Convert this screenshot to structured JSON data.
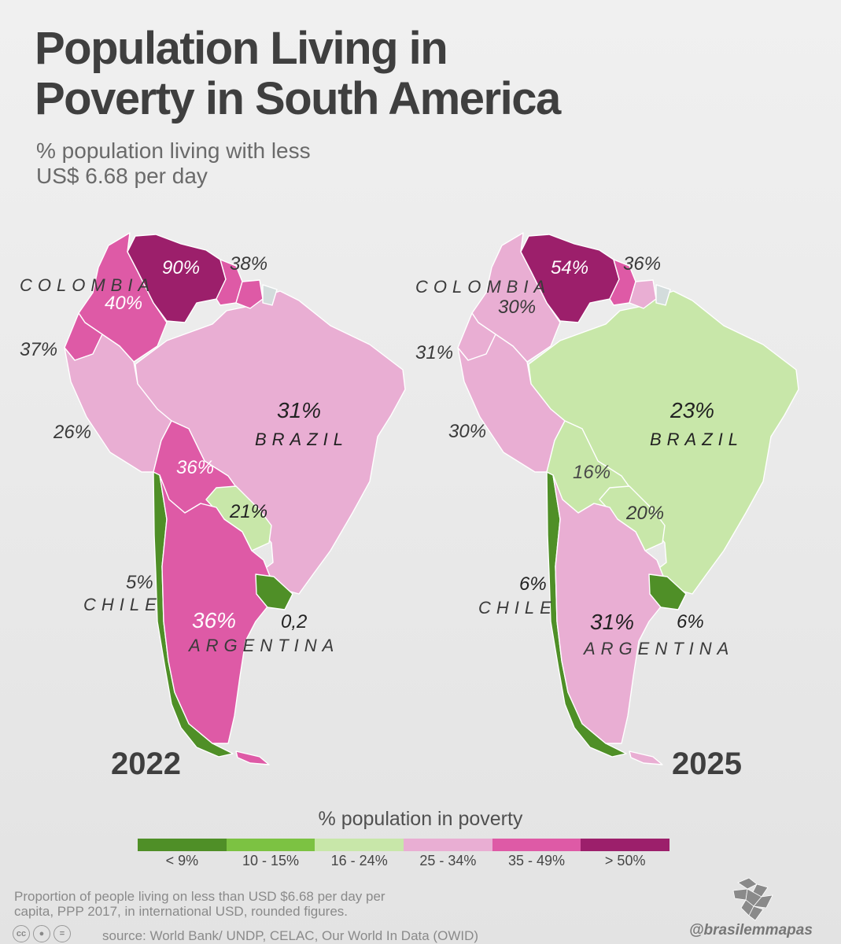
{
  "title_line1": "Population Living in",
  "title_line2": "Poverty in South America",
  "subtitle_line1": "% population living with less",
  "subtitle_line2": "US$ 6.68 per day",
  "maps": {
    "y2022": {
      "year": "2022",
      "labels": {
        "venezuela": "90%",
        "guyanas": "38%",
        "colombia_name": "COLOMBIA",
        "colombia": "40%",
        "ecuador": "37%",
        "peru": "26%",
        "brazil": "31%",
        "brazil_name": "BRAZIL",
        "bolivia": "36%",
        "paraguay": "21%",
        "chile": "5%",
        "chile_name": "CHILE",
        "argentina": "36%",
        "argentina_name": "ARGENTINA",
        "uruguay": "0,2"
      },
      "fills": {
        "venezuela": "#9c1f6b",
        "colombia": "#de5aa6",
        "ecuador": "#de5aa6",
        "peru": "#e9aed3",
        "brazil": "#e9aed3",
        "bolivia": "#de5aa6",
        "paraguay": "#c8e7a9",
        "chile": "#4f8f27",
        "argentina": "#de5aa6",
        "uruguay": "#4f8f27",
        "guyana": "#de5aa6",
        "suriname": "#de5aa6",
        "french_guiana": "#d3dcdc"
      }
    },
    "y2025": {
      "year": "2025",
      "labels": {
        "venezuela": "54%",
        "guyanas": "36%",
        "colombia_name": "COLOMBIA",
        "colombia": "30%",
        "ecuador": "31%",
        "peru": "30%",
        "brazil": "23%",
        "brazil_name": "BRAZIL",
        "bolivia": "16%",
        "paraguay": "20%",
        "chile": "6%",
        "chile_name": "CHILE",
        "argentina": "31%",
        "argentina_name": "ARGENTINA",
        "uruguay": "6%"
      },
      "fills": {
        "venezuela": "#9c1f6b",
        "colombia": "#e9aed3",
        "ecuador": "#e9aed3",
        "peru": "#e9aed3",
        "brazil": "#c8e7a9",
        "bolivia": "#c8e7a9",
        "paraguay": "#c8e7a9",
        "chile": "#4f8f27",
        "argentina": "#e9aed3",
        "uruguay": "#4f8f27",
        "guyana": "#de5aa6",
        "suriname": "#e9aed3",
        "french_guiana": "#d3dcdc"
      }
    }
  },
  "legend": {
    "title": "% population in poverty",
    "items": [
      {
        "label": "< 9%",
        "color": "#4f8f27"
      },
      {
        "label": "10 - 15%",
        "color": "#7cc242"
      },
      {
        "label": "16 - 24%",
        "color": "#c8e7a9"
      },
      {
        "label": "25 - 34%",
        "color": "#e9aed3"
      },
      {
        "label": "35 - 49%",
        "color": "#de5aa6"
      },
      {
        "label": "> 50%",
        "color": "#9c1f6b"
      }
    ]
  },
  "footnote_line1": "Proportion of people living on less than USD $6.68 per day per",
  "footnote_line2": "capita, PPP 2017, in international USD, rounded figures.",
  "license_icons": [
    "cc-icon",
    "by-icon",
    "nd-icon"
  ],
  "source": "source: World Bank/ UNDP, CELAC, Our World In Data (OWID)",
  "handle": "@brasilemmapas"
}
